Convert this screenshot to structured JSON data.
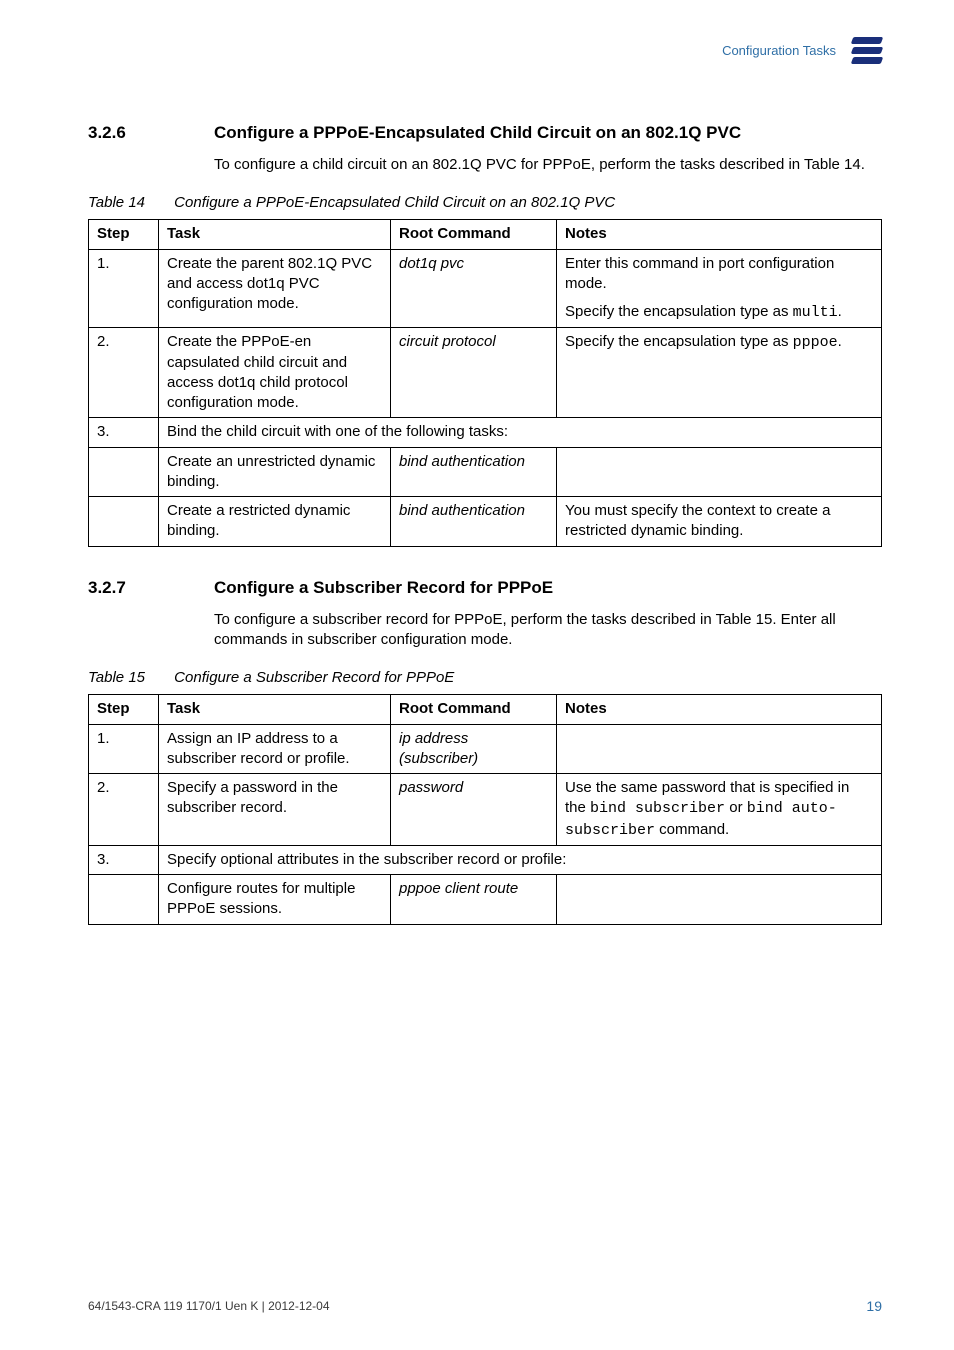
{
  "header": {
    "running_title": "Configuration Tasks"
  },
  "s326": {
    "num": "3.2.6",
    "title": "Configure a PPPoE-Encapsulated Child Circuit on an 802.1Q PVC",
    "para": "To configure a child circuit on an 802.1Q PVC for PPPoE, perform the tasks described in Table 14."
  },
  "t14": {
    "caption_lead": "Table 14",
    "caption": "Configure a PPPoE-Encapsulated Child Circuit on an 802.1Q PVC",
    "h_step": "Step",
    "h_task": "Task",
    "h_cmd": "Root Command",
    "h_notes": "Notes",
    "r1_step": "1.",
    "r1_task": "Create the parent 802.1Q PVC and access dot1q PVC configuration mode.",
    "r1_cmd": "dot1q pvc",
    "r1_notes_a": "Enter this command in port configuration mode.",
    "r1_notes_b_pre": "Specify the encapsulation type as ",
    "r1_notes_b_code": "multi",
    "r2_step": "2.",
    "r2_task": "Create the PPPoE-en capsulated child circuit and access dot1q child protocol configuration mode.",
    "r2_cmd": "circuit protocol",
    "r2_notes_pre": "Specify the encapsulation type as ",
    "r2_notes_code": "pppoe",
    "r3_step": "3.",
    "r3_task": "Bind the child circuit with one of the following tasks:",
    "r4_task": "Create an unrestricted dynamic binding.",
    "r4_cmd": "bind authentication",
    "r5_task": "Create a restricted dynamic binding.",
    "r5_cmd": "bind authentication",
    "r5_notes": "You must specify the context to create a restricted dynamic binding."
  },
  "s327": {
    "num": "3.2.7",
    "title": "Configure a Subscriber Record for PPPoE",
    "para": "To configure a subscriber record for PPPoE, perform the tasks described in Table 15. Enter all commands in subscriber configuration mode."
  },
  "t15": {
    "caption_lead": "Table 15",
    "caption": "Configure a Subscriber Record for PPPoE",
    "h_step": "Step",
    "h_task": "Task",
    "h_cmd": "Root Command",
    "h_notes": "Notes",
    "r1_step": "1.",
    "r1_task": "Assign an IP address to a subscriber record or profile.",
    "r1_cmd": "ip address (subscriber)",
    "r2_step": "2.",
    "r2_task": "Specify a password in the subscriber record.",
    "r2_cmd": "password",
    "r2_notes_pre1": "Use the same password that is specified in the ",
    "r2_notes_code1": "bind subscriber",
    "r2_notes_mid": " or ",
    "r2_notes_code2": "bind auto-subscriber",
    "r2_notes_post": " command.",
    "r3_step": "3.",
    "r3_task": "Specify optional attributes in the subscriber record or profile:",
    "r4_task": "Configure routes for multiple PPPoE sessions.",
    "r4_cmd": "pppoe client route"
  },
  "footer": {
    "doc": "64/1543-CRA 119 1170/1 Uen K   |   2012-12-04",
    "page": "19"
  }
}
